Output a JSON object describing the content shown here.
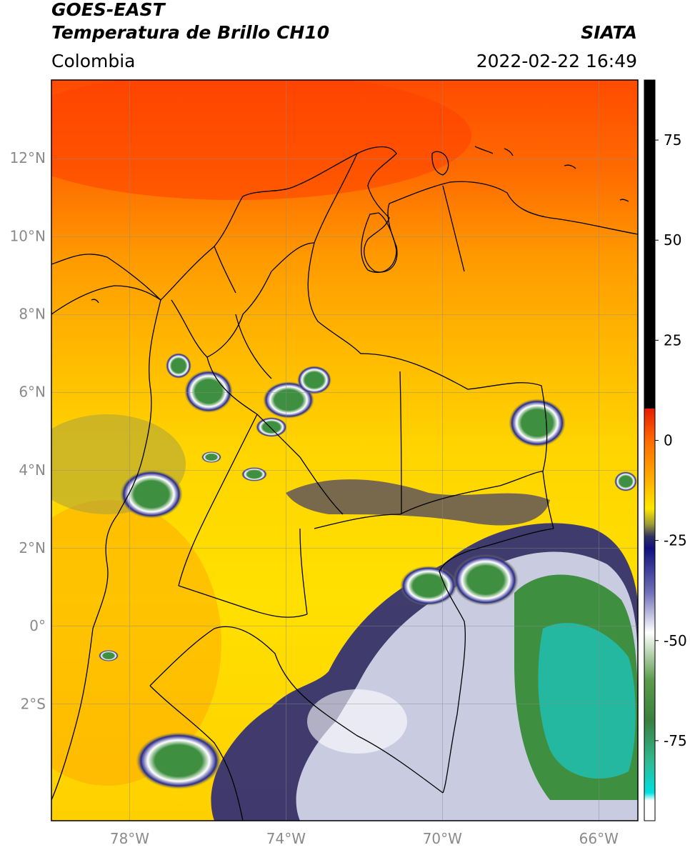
{
  "header": {
    "satellite": "GOES-EAST",
    "product": "Temperatura de Brillo CH10",
    "organization": "SIATA",
    "region": "Colombia",
    "datetime": "2022-02-22 16:49"
  },
  "map": {
    "lon_range": [
      -80,
      -65
    ],
    "lat_range": [
      -5,
      14
    ],
    "lon_ticks": [
      {
        "value": -78,
        "label": "78°W"
      },
      {
        "value": -74,
        "label": "74°W"
      },
      {
        "value": -70,
        "label": "70°W"
      },
      {
        "value": -66,
        "label": "66°W"
      }
    ],
    "lat_ticks": [
      {
        "value": 12,
        "label": "12°N"
      },
      {
        "value": 10,
        "label": "10°N"
      },
      {
        "value": 8,
        "label": "8°N"
      },
      {
        "value": 6,
        "label": "6°N"
      },
      {
        "value": 4,
        "label": "4°N"
      },
      {
        "value": 2,
        "label": "2°N"
      },
      {
        "value": 0,
        "label": "0°"
      },
      {
        "value": -2,
        "label": "2°S"
      }
    ],
    "gridlines": true,
    "colors": {
      "warm_top": "#ff4b00",
      "warm_mid": "#ff9a00",
      "mild": "#ffd200",
      "olive": "#9a9a3a",
      "navy": "#1e1e80",
      "white": "#ffffff",
      "green": "#3f8f40",
      "teal": "#25b8a0"
    }
  },
  "colorbar": {
    "range": [
      -95,
      90
    ],
    "ticks": [
      {
        "value": 75,
        "label": "75"
      },
      {
        "value": 50,
        "label": "50"
      },
      {
        "value": 25,
        "label": "25"
      },
      {
        "value": 0,
        "label": "0"
      },
      {
        "value": -25,
        "label": "-25"
      },
      {
        "value": -50,
        "label": "-50"
      },
      {
        "value": -75,
        "label": "-75"
      }
    ],
    "stops": [
      {
        "value": 90,
        "color": "#000000"
      },
      {
        "value": 8,
        "color": "#000000"
      },
      {
        "value": 7.9,
        "color": "#e81e00"
      },
      {
        "value": 0,
        "color": "#ff6a00"
      },
      {
        "value": -10,
        "color": "#ffb000"
      },
      {
        "value": -17,
        "color": "#ffe800"
      },
      {
        "value": -21,
        "color": "#9a9a3a"
      },
      {
        "value": -24,
        "color": "#303060"
      },
      {
        "value": -27,
        "color": "#101080"
      },
      {
        "value": -38,
        "color": "#7070b8"
      },
      {
        "value": -48,
        "color": "#ffffff"
      },
      {
        "value": -60,
        "color": "#5a9a4a"
      },
      {
        "value": -70,
        "color": "#3a8040"
      },
      {
        "value": -80,
        "color": "#30b890"
      },
      {
        "value": -88,
        "color": "#00e0e0"
      },
      {
        "value": -90,
        "color": "#ffffff"
      },
      {
        "value": -95,
        "color": "#ffffff"
      }
    ]
  }
}
